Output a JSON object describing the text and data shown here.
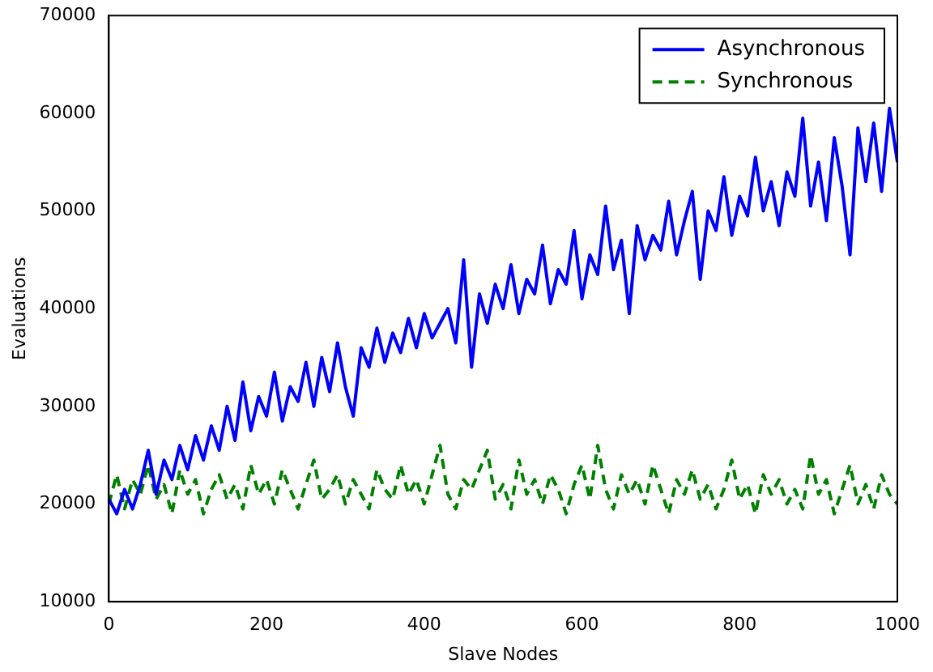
{
  "chart_data": {
    "type": "line",
    "xlabel": "Slave Nodes",
    "ylabel": "Evaluations",
    "xlim": [
      0,
      1000
    ],
    "xticks": [
      0,
      200,
      400,
      600,
      800,
      1000
    ],
    "ylim": [
      10000,
      70000
    ],
    "yticks": [
      10000,
      20000,
      30000,
      40000,
      50000,
      60000,
      70000
    ],
    "legend": "top right",
    "marker": "none",
    "x": [
      0,
      10,
      20,
      30,
      40,
      50,
      60,
      70,
      80,
      90,
      100,
      110,
      120,
      130,
      140,
      150,
      160,
      170,
      180,
      190,
      200,
      210,
      220,
      230,
      240,
      250,
      260,
      270,
      280,
      290,
      300,
      310,
      320,
      330,
      340,
      350,
      360,
      370,
      380,
      390,
      400,
      410,
      420,
      430,
      440,
      450,
      460,
      470,
      480,
      490,
      500,
      510,
      520,
      530,
      540,
      550,
      560,
      570,
      580,
      590,
      600,
      610,
      620,
      630,
      640,
      650,
      660,
      670,
      680,
      690,
      700,
      710,
      720,
      730,
      740,
      750,
      760,
      770,
      780,
      790,
      800,
      810,
      820,
      830,
      840,
      850,
      860,
      870,
      880,
      890,
      900,
      910,
      920,
      930,
      940,
      950,
      960,
      970,
      980,
      990,
      1000
    ],
    "series": [
      {
        "name": "Asynchronous",
        "color": "#0000ff",
        "line_style": "solid",
        "values": [
          20500,
          19000,
          21500,
          19500,
          22000,
          25500,
          21000,
          24500,
          22500,
          26000,
          23500,
          27000,
          24500,
          28000,
          25500,
          30000,
          26500,
          32500,
          27500,
          31000,
          29000,
          33500,
          28500,
          32000,
          30500,
          34500,
          30000,
          35000,
          31500,
          36500,
          32000,
          29000,
          36000,
          34000,
          38000,
          34500,
          37500,
          35500,
          39000,
          36000,
          39500,
          37000,
          38500,
          40000,
          36500,
          45000,
          34000,
          41500,
          38500,
          42500,
          40000,
          44500,
          39500,
          43000,
          41500,
          46500,
          40500,
          44000,
          42500,
          48000,
          41000,
          45500,
          43500,
          50500,
          44000,
          47000,
          39500,
          48500,
          45000,
          47500,
          46000,
          51000,
          45500,
          49000,
          52000,
          43000,
          50000,
          48000,
          53500,
          47500,
          51500,
          49500,
          55500,
          50000,
          53000,
          48500,
          54000,
          51500,
          59500,
          50500,
          55000,
          49000,
          57500,
          52500,
          45500,
          58500,
          53000,
          59000,
          52000,
          60500,
          55000
        ]
      },
      {
        "name": "Synchronous",
        "color": "#008000",
        "line_style": "dashed",
        "values": [
          20000,
          23000,
          19500,
          22500,
          21000,
          24000,
          20500,
          22000,
          19000,
          23500,
          21000,
          22500,
          19000,
          21500,
          23000,
          20500,
          22000,
          19500,
          24000,
          21000,
          22500,
          20000,
          23500,
          21500,
          19500,
          22000,
          24500,
          20500,
          21500,
          23000,
          20000,
          22500,
          21000,
          19500,
          23500,
          21500,
          20500,
          24000,
          21000,
          22500,
          20000,
          23000,
          26000,
          21000,
          19500,
          22500,
          21500,
          23500,
          25500,
          20500,
          22000,
          19500,
          24500,
          21000,
          22500,
          20000,
          23000,
          21500,
          19000,
          22000,
          24000,
          20500,
          26000,
          21500,
          19500,
          23000,
          21000,
          22500,
          20000,
          24000,
          21500,
          19000,
          22500,
          21000,
          23500,
          20500,
          22000,
          19500,
          21500,
          24500,
          20500,
          22000,
          19000,
          23000,
          21000,
          22500,
          20000,
          21500,
          19500,
          25000,
          21000,
          22500,
          19000,
          21500,
          24000,
          20000,
          22000,
          19500,
          23000,
          21000,
          20000
        ]
      }
    ]
  }
}
